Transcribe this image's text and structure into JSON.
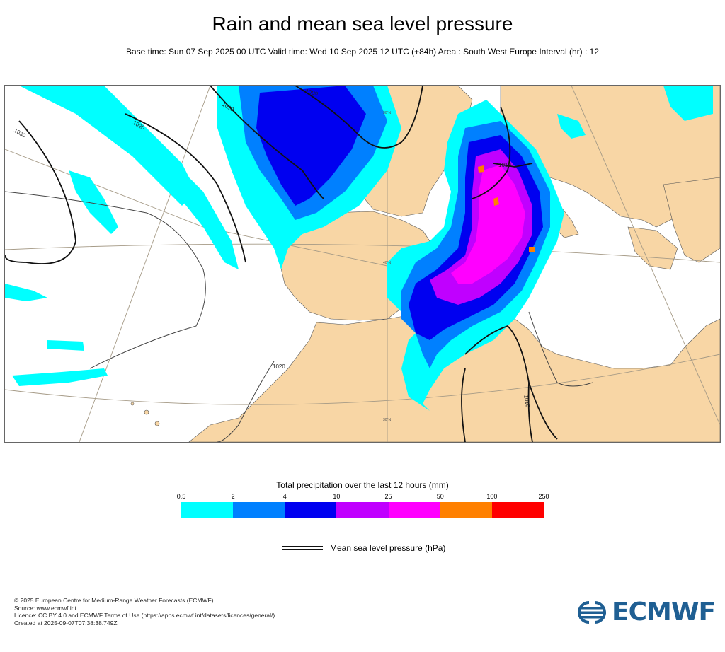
{
  "title": "Rain and mean sea level pressure",
  "subtitle": "Base time: Sun 07 Sep 2025 00 UTC Valid time: Wed 10 Sep 2025 12 UTC (+84h) Area : South West Europe Interval (hr) : 12",
  "map": {
    "isobar_labels": [
      "1030",
      "1020",
      "1010",
      "1000",
      "1020",
      "1010",
      "1010"
    ],
    "grid_labels": [
      "30°N",
      "30°N",
      "40°N"
    ]
  },
  "legend": {
    "title": "Total precipitation over the last 12 hours (mm)",
    "ticks": [
      "0.5",
      "2",
      "4",
      "10",
      "25",
      "50",
      "100",
      "250"
    ],
    "colors": [
      "#00ffff",
      "#0080ff",
      "#0000f0",
      "#c000ff",
      "#ff00ff",
      "#ff8000",
      "#ff0000"
    ]
  },
  "mslp_legend": {
    "label": "Mean sea level pressure (hPa)"
  },
  "footer": {
    "lines": [
      "© 2025 European Centre for Medium-Range Weather Forecasts (ECMWF)",
      "Source: www.ecmwf.int",
      "Licence: CC BY 4.0 and ECMWF Terms of Use (https://apps.ecmwf.int/datasets/licences/general/)",
      "Created at 2025-09-07T07:38:38.749Z"
    ]
  },
  "logo": {
    "text": "ECMWF",
    "icon": "ecmwf-logo-icon",
    "color": "#1f5f93"
  },
  "land_color": "#f8d6a5"
}
